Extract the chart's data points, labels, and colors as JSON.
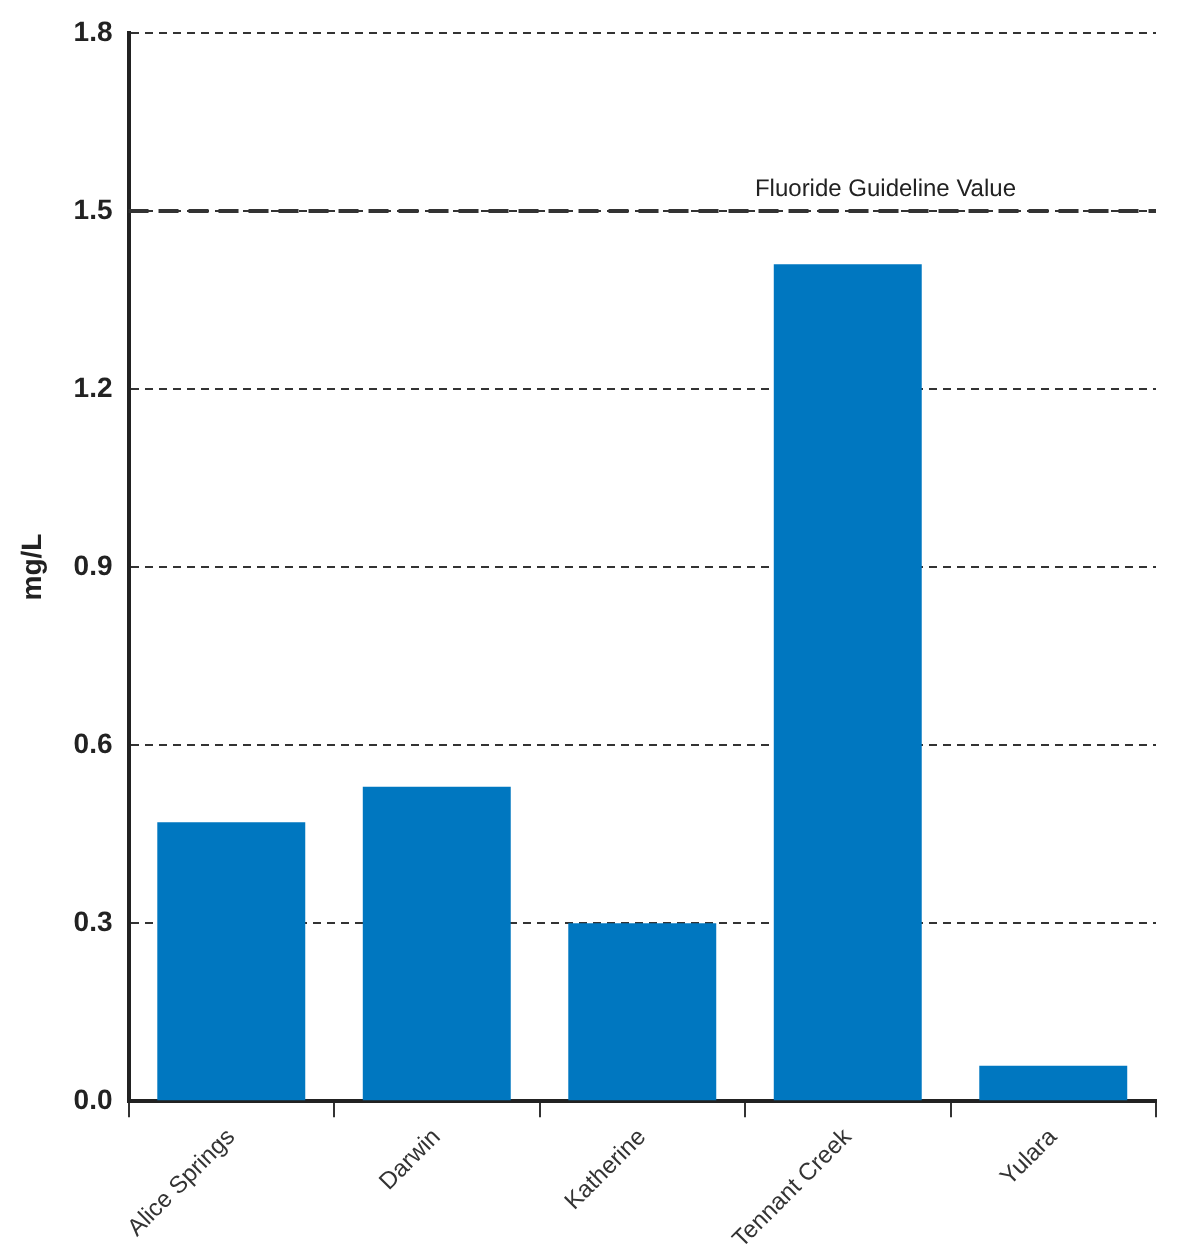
{
  "chart_data": {
    "type": "bar",
    "ylabel": "mg/L",
    "categories": [
      "Alice Springs",
      "Darwin",
      "Katherine",
      "Tennant Creek",
      "Yulara"
    ],
    "values": [
      0.47,
      0.53,
      0.3,
      1.41,
      0.06
    ],
    "color": "#0077c0",
    "ylim": [
      0,
      1.8
    ],
    "yticks": [
      {
        "value": 0,
        "label": "0.0"
      },
      {
        "value": 0.3,
        "label": "0.3"
      },
      {
        "value": 0.6,
        "label": "0.6"
      },
      {
        "value": 0.9,
        "label": "0.9"
      },
      {
        "value": 1.2,
        "label": "1.2"
      },
      {
        "value": 1.5,
        "label": "1.5"
      },
      {
        "value": 1.8,
        "label": "1.8"
      }
    ],
    "grid": "y",
    "legend": false,
    "ref_lines": [
      {
        "axis": "y",
        "value": 1.5,
        "label": "Fluoride Guideline Value",
        "color": "#333333",
        "line_style": "dashed"
      }
    ]
  }
}
